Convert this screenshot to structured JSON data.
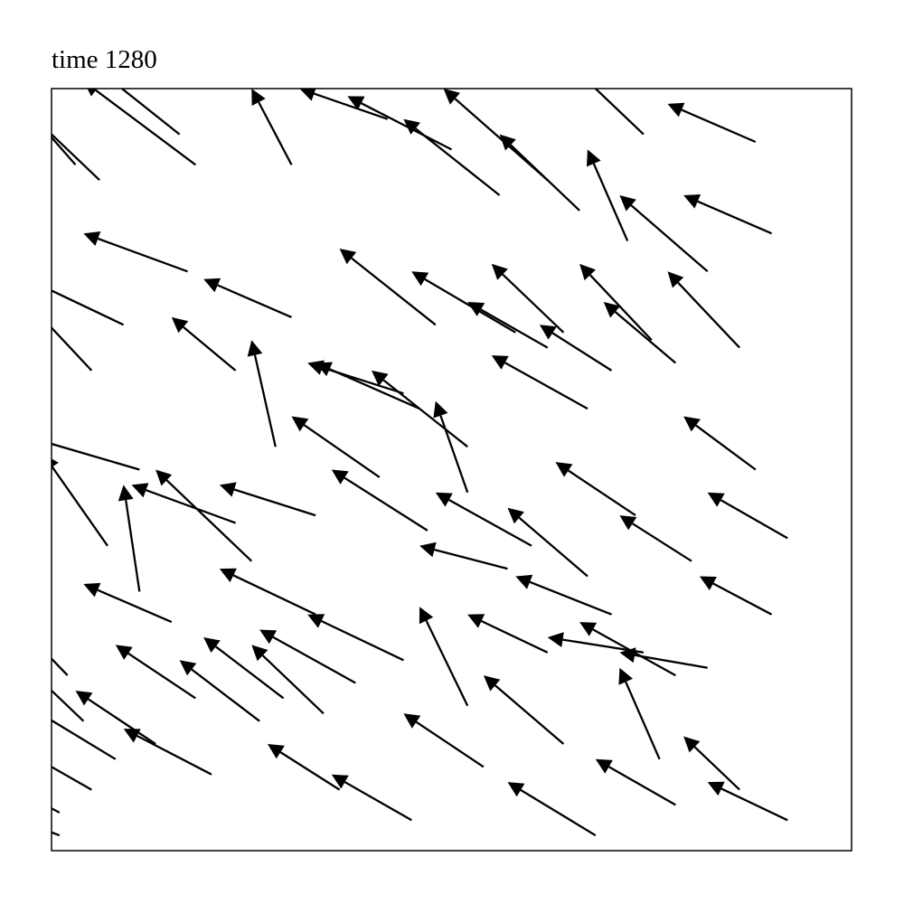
{
  "chart_data": {
    "type": "quiver",
    "title": "time 1280",
    "xlabel": "",
    "ylabel": "",
    "xlim": [
      0,
      1
    ],
    "ylim": [
      0,
      1
    ],
    "ticks": "none",
    "grid": false,
    "arrow_color": "#000000",
    "points": [
      [
        0.25,
        0.38,
        0.12,
        0.12
      ],
      [
        0.16,
        0.94,
        0.12,
        0.1
      ],
      [
        0.18,
        0.9,
        0.14,
        0.11
      ],
      [
        0.06,
        0.88,
        0.12,
        0.12
      ],
      [
        0.03,
        0.9,
        0.1,
        0.12
      ],
      [
        0.29,
        0.2,
        0.1,
        0.08
      ],
      [
        0.52,
        0.53,
        0.12,
        0.1
      ],
      [
        0.46,
        0.58,
        0.13,
        0.06
      ],
      [
        0.44,
        0.6,
        0.12,
        0.04
      ],
      [
        0.62,
        0.88,
        0.13,
        0.12
      ],
      [
        0.66,
        0.84,
        0.1,
        0.1
      ],
      [
        0.56,
        0.86,
        0.12,
        0.1
      ],
      [
        0.82,
        0.76,
        0.11,
        0.1
      ],
      [
        0.86,
        0.66,
        0.09,
        0.1
      ],
      [
        0.73,
        0.44,
        0.1,
        0.07
      ],
      [
        0.7,
        0.31,
        0.12,
        0.05
      ],
      [
        0.78,
        0.23,
        0.12,
        0.07
      ],
      [
        0.54,
        0.11,
        0.1,
        0.07
      ],
      [
        0.38,
        0.22,
        0.12,
        0.07
      ],
      [
        0.2,
        0.1,
        0.11,
        0.06
      ],
      [
        0.13,
        0.14,
        0.1,
        0.07
      ],
      [
        0.02,
        0.23,
        0.11,
        0.12
      ],
      [
        0.07,
        0.4,
        0.08,
        0.12
      ],
      [
        0.11,
        0.5,
        0.13,
        0.04
      ],
      [
        0.23,
        0.43,
        0.13,
        0.05
      ],
      [
        0.33,
        0.44,
        0.12,
        0.04
      ],
      [
        0.41,
        0.49,
        0.11,
        0.08
      ],
      [
        0.47,
        0.42,
        0.12,
        0.08
      ],
      [
        0.6,
        0.4,
        0.12,
        0.07
      ],
      [
        0.67,
        0.36,
        0.1,
        0.09
      ],
      [
        0.8,
        0.38,
        0.09,
        0.06
      ],
      [
        0.92,
        0.41,
        0.1,
        0.06
      ],
      [
        0.88,
        0.5,
        0.09,
        0.07
      ],
      [
        0.67,
        0.58,
        0.12,
        0.07
      ],
      [
        0.58,
        0.68,
        0.13,
        0.08
      ],
      [
        0.48,
        0.69,
        0.12,
        0.1
      ],
      [
        0.3,
        0.7,
        0.11,
        0.05
      ],
      [
        0.17,
        0.76,
        0.13,
        0.05
      ],
      [
        0.09,
        0.69,
        0.12,
        0.06
      ],
      [
        0.05,
        0.63,
        0.08,
        0.09
      ],
      [
        0.23,
        0.63,
        0.08,
        0.07
      ],
      [
        0.28,
        0.53,
        0.03,
        0.14
      ],
      [
        0.11,
        0.34,
        0.02,
        0.14
      ],
      [
        0.15,
        0.3,
        0.11,
        0.05
      ],
      [
        0.33,
        0.31,
        0.12,
        0.06
      ],
      [
        0.44,
        0.25,
        0.12,
        0.06
      ],
      [
        0.52,
        0.19,
        0.06,
        0.13
      ],
      [
        0.64,
        0.14,
        0.1,
        0.09
      ],
      [
        0.76,
        0.12,
        0.05,
        0.12
      ],
      [
        0.86,
        0.08,
        0.07,
        0.07
      ],
      [
        0.92,
        0.04,
        0.1,
        0.05
      ],
      [
        0.78,
        0.06,
        0.1,
        0.06
      ],
      [
        0.68,
        0.02,
        0.11,
        0.07
      ],
      [
        0.45,
        0.04,
        0.1,
        0.06
      ],
      [
        0.36,
        0.08,
        0.09,
        0.06
      ],
      [
        0.05,
        0.08,
        0.1,
        0.06
      ],
      [
        0.01,
        0.02,
        0.1,
        0.04
      ],
      [
        0.3,
        0.9,
        0.05,
        0.1
      ],
      [
        0.42,
        0.96,
        0.11,
        0.04
      ],
      [
        0.5,
        0.92,
        0.13,
        0.07
      ],
      [
        0.72,
        0.8,
        0.05,
        0.12
      ],
      [
        0.74,
        0.94,
        0.1,
        0.1
      ],
      [
        0.88,
        0.93,
        0.11,
        0.05
      ],
      [
        0.9,
        0.81,
        0.11,
        0.05
      ],
      [
        0.64,
        0.68,
        0.09,
        0.09
      ],
      [
        0.62,
        0.66,
        0.1,
        0.06
      ],
      [
        0.7,
        0.63,
        0.09,
        0.06
      ],
      [
        0.75,
        0.67,
        0.09,
        0.1
      ],
      [
        0.78,
        0.64,
        0.09,
        0.08
      ],
      [
        0.52,
        0.47,
        0.04,
        0.12
      ],
      [
        0.57,
        0.37,
        0.11,
        0.03
      ],
      [
        0.62,
        0.26,
        0.1,
        0.05
      ],
      [
        0.74,
        0.26,
        0.12,
        0.02
      ],
      [
        0.82,
        0.24,
        0.11,
        0.02
      ],
      [
        0.9,
        0.31,
        0.09,
        0.05
      ],
      [
        0.34,
        0.18,
        0.09,
        0.09
      ],
      [
        0.26,
        0.17,
        0.1,
        0.08
      ],
      [
        0.18,
        0.2,
        0.1,
        0.07
      ],
      [
        0.08,
        0.12,
        0.11,
        0.07
      ],
      [
        0.04,
        0.17,
        0.09,
        0.09
      ],
      [
        0.01,
        0.05,
        0.09,
        0.05
      ]
    ]
  }
}
